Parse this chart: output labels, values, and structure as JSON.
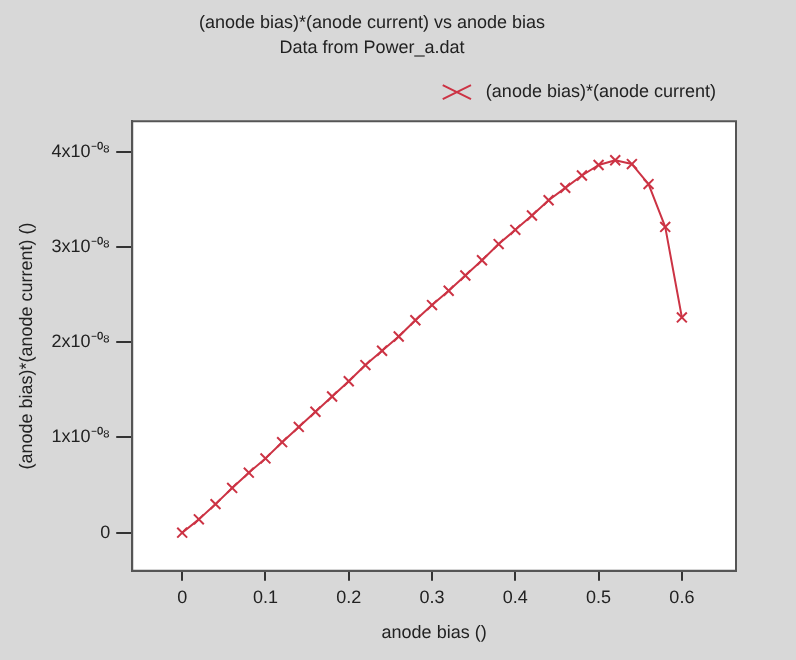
{
  "chart_data": {
    "type": "line",
    "title": "(anode bias)*(anode current) vs anode bias",
    "subtitle": "Data from Power_a.dat",
    "xlabel": "anode bias ()",
    "ylabel": "(anode bias)*(anode current) ()",
    "x": [
      0,
      0.02,
      0.04,
      0.06,
      0.08,
      0.1,
      0.12,
      0.14,
      0.16,
      0.18,
      0.2,
      0.22,
      0.24,
      0.26,
      0.28,
      0.3,
      0.32,
      0.34,
      0.36,
      0.38,
      0.4,
      0.42,
      0.44,
      0.46,
      0.48,
      0.5,
      0.52,
      0.54,
      0.56,
      0.58,
      0.6
    ],
    "series": [
      {
        "name": "(anode bias)*(anode current)",
        "color": "#cc3344",
        "values": [
          0,
          1.4e-09,
          3e-09,
          4.7e-09,
          6.3e-09,
          7.8e-09,
          9.5e-09,
          1.11e-08,
          1.27e-08,
          1.43e-08,
          1.59e-08,
          1.76e-08,
          1.91e-08,
          2.06e-08,
          2.23e-08,
          2.39e-08,
          2.54e-08,
          2.7e-08,
          2.86e-08,
          3.03e-08,
          3.18e-08,
          3.33e-08,
          3.49e-08,
          3.62e-08,
          3.75e-08,
          3.86e-08,
          3.91e-08,
          3.87e-08,
          3.66e-08,
          3.21e-08,
          2.26e-08
        ]
      }
    ],
    "xlim": [
      -0.06,
      0.665
    ],
    "xticks": [
      0,
      0.1,
      0.2,
      0.3,
      0.4,
      0.5,
      0.6
    ],
    "ylim": [
      -4e-09,
      4.32e-08
    ],
    "yticks": [
      0,
      {
        "value": 1e-08,
        "label": "1x10⁻⁰⁸"
      },
      {
        "value": 2e-08,
        "label": "2x10⁻⁰⁸"
      },
      {
        "value": 3e-08,
        "label": "3x10⁻⁰⁸"
      },
      {
        "value": 4e-08,
        "label": "4x10⁻⁰⁸"
      }
    ],
    "grid": false,
    "legend": "top right",
    "marker": "cross",
    "line_style": "solid"
  }
}
